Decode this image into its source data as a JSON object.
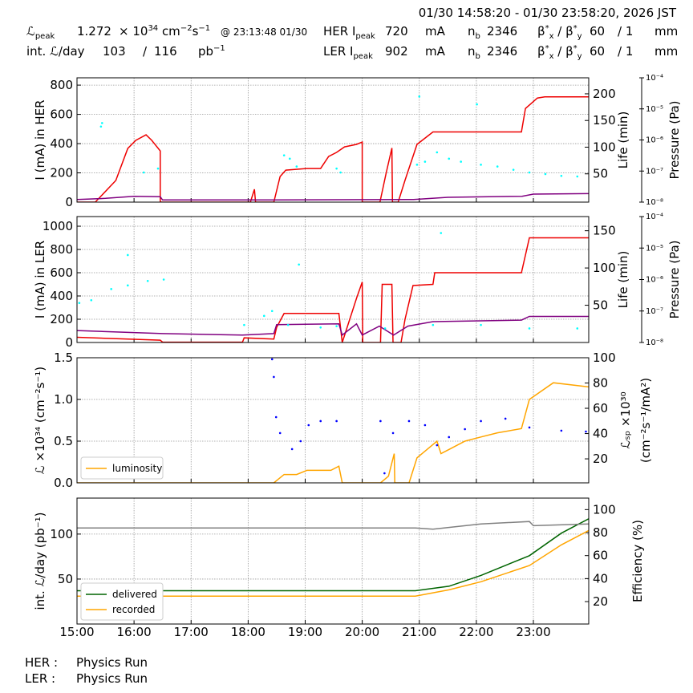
{
  "header": {
    "title": "01/30 14:58:20 - 01/30 23:58:20, 2026 JST",
    "line1": [
      [
        {
          "t": "ℒ"
        },
        {
          "t": "peak",
          "k": "sub"
        }
      ],
      [
        {
          "t": "1.272"
        }
      ],
      [
        {
          "t": "× 10"
        },
        {
          "t": "34",
          "k": "sup"
        },
        {
          "t": " cm"
        },
        {
          "t": "−2",
          "k": "sup"
        },
        {
          "t": "s"
        },
        {
          "t": "−1",
          "k": "sup"
        }
      ],
      [
        {
          "t": "@ 23:13:48 01/30",
          "k": "small"
        }
      ],
      [
        {
          "t": "HER I"
        },
        {
          "t": "peak",
          "k": "sub"
        }
      ],
      [
        {
          "t": "720"
        }
      ],
      [
        {
          "t": "mA"
        }
      ],
      [
        {
          "t": "n"
        },
        {
          "t": "b",
          "k": "sub"
        }
      ],
      [
        {
          "t": "2346"
        }
      ],
      [
        {
          "t": "β"
        },
        {
          "t": "*",
          "k": "sup"
        },
        {
          "t": "x",
          "k": "sub"
        },
        {
          "t": " / β"
        },
        {
          "t": "*",
          "k": "sup"
        },
        {
          "t": "y",
          "k": "sub"
        }
      ],
      [
        {
          "t": "60"
        }
      ],
      [
        {
          "t": "/ 1"
        }
      ],
      [
        {
          "t": "mm"
        }
      ]
    ],
    "line2": [
      [
        {
          "t": "int. ℒ/day"
        }
      ],
      [
        {
          "t": "103"
        }
      ],
      [
        {
          "t": "/"
        }
      ],
      [
        {
          "t": "116"
        }
      ],
      [
        {
          "t": "pb"
        },
        {
          "t": "−1",
          "k": "sup"
        }
      ],
      [
        {
          "t": "LER I"
        },
        {
          "t": "peak",
          "k": "sub"
        }
      ],
      [
        {
          "t": "902"
        }
      ],
      [
        {
          "t": "mA"
        }
      ],
      [
        {
          "t": "n"
        },
        {
          "t": "b",
          "k": "sub"
        }
      ],
      [
        {
          "t": "2346"
        }
      ],
      [
        {
          "t": "β"
        },
        {
          "t": "*",
          "k": "sup"
        },
        {
          "t": "x",
          "k": "sub"
        },
        {
          "t": " / β"
        },
        {
          "t": "*",
          "k": "sup"
        },
        {
          "t": "y",
          "k": "sub"
        }
      ],
      [
        {
          "t": "60"
        }
      ],
      [
        {
          "t": "/ 1"
        }
      ],
      [
        {
          "t": "mm"
        }
      ]
    ]
  },
  "footer": {
    "rows": [
      [
        "HER :",
        "Physics Run"
      ],
      [
        "LER :",
        "Physics Run"
      ]
    ]
  },
  "chart_data": [
    {
      "type": "line",
      "ylabel": "I (mA) in HER",
      "y2label": "Life (min)",
      "y3label": "Pressure (Pa)",
      "ylim": [
        0,
        850
      ],
      "yticks": [
        0,
        200,
        400,
        600,
        800
      ],
      "y2lim": [
        -3,
        230
      ],
      "y2ticks": [
        50,
        100,
        150,
        200
      ],
      "y3lim": [
        1e-08,
        0.0001
      ],
      "y3_log": true,
      "y3ticks": [
        {
          "value": 1e-08,
          "label": "10⁻⁸"
        },
        {
          "value": 1e-07,
          "label": "10⁻⁷"
        },
        {
          "value": 1e-06,
          "label": "10⁻⁶"
        },
        {
          "value": 1e-05,
          "label": "10⁻⁵"
        },
        {
          "value": 0.0001,
          "label": "10⁻⁴"
        }
      ],
      "grid": true,
      "series": [
        {
          "color": "#ee0000",
          "style": "line",
          "axis": "y",
          "x": [
            15.0,
            15.32,
            15.68,
            15.89,
            16.03,
            16.21,
            16.31,
            16.46,
            16.46,
            18.04,
            18.11,
            18.13,
            18.45,
            18.56,
            18.66,
            19.03,
            19.27,
            19.41,
            19.55,
            19.69,
            19.9,
            20.0,
            20.0,
            20.31,
            20.42,
            20.52,
            20.53,
            20.63,
            20.75,
            20.96,
            21.24,
            22.79,
            22.86,
            23.07,
            23.2,
            23.97
          ],
          "values": [
            0,
            0,
            148,
            367,
            422,
            460,
            422,
            350,
            0,
            0,
            88,
            0,
            0,
            175,
            219,
            230,
            230,
            312,
            340,
            378,
            395,
            411,
            0,
            0,
            200,
            370,
            0,
            0,
            150,
            395,
            480,
            480,
            640,
            712,
            720,
            720
          ]
        },
        {
          "color": "#800080",
          "style": "line",
          "axis": "y2",
          "x": [
            15.0,
            15.5,
            16.0,
            16.46,
            16.5,
            18.45,
            20.9,
            21.5,
            22.8,
            23.0,
            23.97
          ],
          "values": [
            2,
            4,
            8,
            7,
            1,
            1,
            2,
            6,
            8,
            12,
            13
          ]
        },
        {
          "color": "#00ffff",
          "style": "points",
          "axis": "y3",
          "x": [
            15.42,
            15.44,
            16.17,
            16.42,
            18.63,
            18.73,
            18.85,
            19.55,
            19.62,
            20.96,
            21.1,
            21.31,
            21.52,
            21.73,
            22.08,
            22.37,
            22.65,
            22.93,
            23.21,
            23.49,
            23.77,
            21.0,
            22.01
          ],
          "values": [
            2.7e-06,
            3.5e-06,
            9e-08,
            1.2e-07,
            3.2e-07,
            2.5e-07,
            1.4e-07,
            1.2e-07,
            9e-08,
            1.6e-07,
            2e-07,
            4e-07,
            2.5e-07,
            2e-07,
            1.6e-07,
            1.4e-07,
            1.1e-07,
            9e-08,
            8e-08,
            7e-08,
            6.7e-08,
            2.5e-05,
            1.4e-05
          ]
        }
      ]
    },
    {
      "type": "line",
      "ylabel": "I (mA) in LER",
      "y2label": "Life (min)",
      "y3label": "Pressure (Pa)",
      "ylim": [
        0,
        1083
      ],
      "yticks": [
        0,
        200,
        400,
        600,
        800,
        1000
      ],
      "y2lim": [
        0,
        169
      ],
      "y2ticks": [
        50,
        100,
        150
      ],
      "y3lim": [
        1e-08,
        0.0001
      ],
      "y3_log": true,
      "y3ticks": [
        {
          "value": 1e-08,
          "label": "10⁻⁸"
        },
        {
          "value": 1e-07,
          "label": "10⁻⁷"
        },
        {
          "value": 1e-06,
          "label": "10⁻⁶"
        },
        {
          "value": 1e-05,
          "label": "10⁻⁵"
        },
        {
          "value": 0.0001,
          "label": "10⁻⁴"
        }
      ],
      "grid": true,
      "series": [
        {
          "color": "#ee0000",
          "style": "line",
          "axis": "y",
          "x": [
            15.0,
            16.46,
            16.5,
            17.9,
            17.93,
            18.45,
            18.5,
            18.63,
            19.59,
            19.65,
            19.9,
            20.0,
            20.01,
            20.32,
            20.35,
            20.52,
            20.54,
            20.68,
            20.75,
            20.89,
            21.24,
            21.27,
            22.79,
            22.93,
            23.97
          ],
          "values": [
            45,
            20,
            3,
            3,
            40,
            30,
            130,
            250,
            250,
            0,
            380,
            520,
            0,
            0,
            500,
            500,
            0,
            0,
            200,
            490,
            500,
            600,
            600,
            900,
            900
          ]
        },
        {
          "color": "#800080",
          "style": "line",
          "axis": "y2",
          "x": [
            15.0,
            16.5,
            17.9,
            18.45,
            18.5,
            19.59,
            19.65,
            19.9,
            20.0,
            20.3,
            20.55,
            20.8,
            21.24,
            22.79,
            22.93,
            23.97
          ],
          "values": [
            16,
            12,
            10,
            12,
            24,
            25,
            10,
            25,
            10,
            22,
            10,
            22,
            28,
            30,
            35,
            35
          ]
        },
        {
          "color": "#00ffff",
          "style": "points",
          "axis": "y3",
          "x": [
            15.04,
            15.25,
            15.6,
            15.89,
            16.24,
            16.52,
            15.89,
            17.93,
            18.28,
            18.42,
            18.7,
            19.27,
            19.55,
            20.4,
            21.24,
            22.08,
            22.93,
            23.77,
            21.38,
            18.89
          ],
          "values": [
            1.8e-07,
            2.2e-07,
            5e-07,
            6.5e-07,
            9e-07,
            1e-06,
            6e-06,
            3.6e-08,
            7e-08,
            1e-07,
            3.6e-08,
            3e-08,
            3.3e-08,
            2.8e-08,
            3.6e-08,
            3.6e-08,
            2.8e-08,
            2.8e-08,
            3e-05,
            3e-06
          ]
        }
      ]
    },
    {
      "type": "line",
      "ylabel": "ℒ ×10³⁴ (cm⁻²s⁻¹)",
      "y2label": "ℒₛₚ ×10³⁰",
      "y2label2": "(cm⁻²s⁻¹/mA²)",
      "ylim": [
        0,
        1.5
      ],
      "yticks": [
        {
          "value": 0,
          "label": "0.0"
        },
        0.5,
        {
          "value": 1,
          "label": "1.0"
        },
        1.5
      ],
      "y2lim": [
        1,
        100
      ],
      "y2ticks": [
        20,
        40,
        60,
        80,
        100
      ],
      "grid": true,
      "legend": "lower left",
      "series": [
        {
          "name": "luminosity",
          "color": "#ffa500",
          "style": "line",
          "axis": "y",
          "x": [
            15.0,
            18.45,
            18.63,
            18.85,
            19.03,
            19.45,
            19.59,
            19.65,
            20.32,
            20.46,
            20.56,
            20.57,
            20.82,
            20.96,
            21.31,
            21.38,
            21.52,
            21.8,
            22.08,
            22.37,
            22.79,
            22.93,
            23.35,
            23.97
          ],
          "values": [
            0,
            0,
            0.1,
            0.1,
            0.15,
            0.15,
            0.2,
            0,
            0,
            0.08,
            0.35,
            0,
            0,
            0.3,
            0.5,
            0.35,
            0.4,
            0.5,
            0.55,
            0.6,
            0.65,
            1.0,
            1.2,
            1.15
          ]
        },
        {
          "color": "#0000ff",
          "style": "points",
          "axis": "y2",
          "x": [
            18.42,
            18.45,
            18.49,
            18.56,
            18.77,
            18.92,
            19.06,
            19.27,
            19.55,
            20.32,
            20.39,
            20.54,
            20.82,
            21.1,
            21.31,
            21.52,
            21.8,
            22.08,
            22.51,
            22.93,
            23.49,
            23.92
          ],
          "values": [
            98.8,
            84.8,
            53,
            40.4,
            27.7,
            34,
            46.7,
            49.9,
            49.9,
            49.9,
            8.6,
            40.4,
            49.9,
            46.7,
            30.8,
            37.2,
            43.5,
            49.9,
            51.8,
            44.8,
            42.3,
            41.6
          ]
        }
      ]
    },
    {
      "type": "line",
      "ylabel": "int. ℒ/day (pb⁻¹)",
      "y2label": "Efficiency (%)",
      "ylim": [
        0,
        140
      ],
      "yticks": [
        50,
        100
      ],
      "y2lim": [
        0.5,
        110
      ],
      "y2ticks": [
        20,
        40,
        60,
        80,
        100
      ],
      "xlim": [
        15,
        23.97
      ],
      "xticks": [
        {
          "value": 15,
          "label": "15:00"
        },
        {
          "value": 16,
          "label": "16:00"
        },
        {
          "value": 17,
          "label": "17:00"
        },
        {
          "value": 18,
          "label": "18:00"
        },
        {
          "value": 19,
          "label": "19:00"
        },
        {
          "value": 20,
          "label": "20:00"
        },
        {
          "value": 21,
          "label": "21:00"
        },
        {
          "value": 22,
          "label": "22:00"
        },
        {
          "value": 23,
          "label": "23:00"
        }
      ],
      "grid": true,
      "legend": "lower left",
      "series": [
        {
          "name": "delivered",
          "color": "#006400",
          "style": "line",
          "axis": "y",
          "x": [
            15.0,
            20.93,
            21.52,
            22.08,
            22.93,
            23.49,
            23.97
          ],
          "values": [
            37,
            37,
            42,
            54,
            76,
            101,
            117
          ]
        },
        {
          "name": "recorded",
          "color": "#ffa500",
          "style": "line",
          "axis": "y",
          "x": [
            15.0,
            20.93,
            21.52,
            22.08,
            22.93,
            23.49,
            23.97
          ],
          "values": [
            31,
            31,
            38,
            47,
            65,
            88,
            104
          ]
        },
        {
          "color": "#808080",
          "style": "line",
          "axis": "y2",
          "x": [
            15.0,
            20.93,
            21.24,
            22.08,
            22.93,
            23.0,
            23.97
          ],
          "values": [
            84,
            84,
            83,
            87.5,
            89.6,
            86,
            87.5
          ]
        }
      ]
    }
  ]
}
